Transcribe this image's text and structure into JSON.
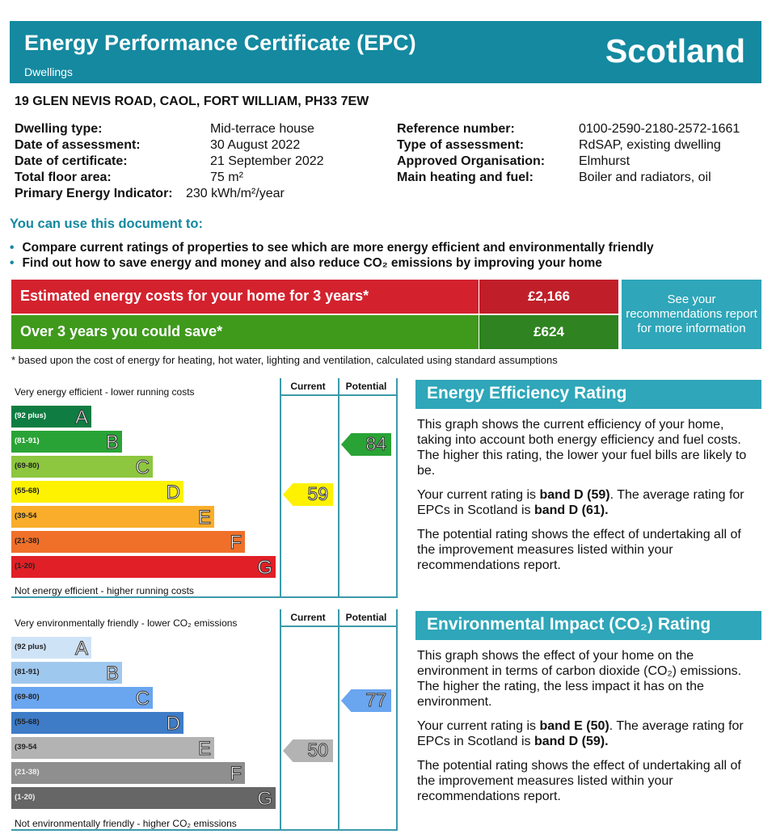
{
  "header": {
    "title": "Energy Performance Certificate (EPC)",
    "subtitle": "Dwellings",
    "region": "Scotland",
    "color": "#1489a0"
  },
  "address": "19 GLEN NEVIS ROAD, CAOL, FORT WILLIAM, PH33 7EW",
  "details_left": [
    {
      "label": "Dwelling type:",
      "value": "Mid-terrace house"
    },
    {
      "label": "Date of assessment:",
      "value": "30 August 2022"
    },
    {
      "label": "Date of certificate:",
      "value": "21 September 2022"
    },
    {
      "label": "Total floor area:",
      "value": "75 m²"
    },
    {
      "label": "Primary Energy Indicator:",
      "value": "230 kWh/m²/year"
    }
  ],
  "details_right": [
    {
      "label": "Reference number:",
      "value": "0100-2590-2180-2572-1661"
    },
    {
      "label": "Type of assessment:",
      "value": "RdSAP, existing dwelling"
    },
    {
      "label": "Approved Organisation:",
      "value": "Elmhurst"
    },
    {
      "label": "Main heating and fuel:",
      "value": "Boiler and radiators, oil"
    }
  ],
  "use_heading": "You can use this document to:",
  "bullets": [
    "Compare current ratings of properties to see which are more energy efficient and environmentally friendly",
    "Find out how to save energy and money and also reduce CO₂ emissions by improving your home"
  ],
  "costs": {
    "estimated_label": "Estimated energy costs for your home for 3 years*",
    "estimated_value": "£2,166",
    "save_label": "Over 3 years you could save*",
    "save_value": "£624",
    "recommendations_link": "See your recommendations report for more information",
    "footnote": "* based upon the cost of energy for heating, hot water, lighting and ventilation, calculated using standard assumptions"
  },
  "energy_chart": {
    "top_label": "Very energy efficient - lower running costs",
    "bottom_label": "Not energy efficient - higher running costs",
    "current_header": "Current",
    "potential_header": "Potential",
    "bands": [
      {
        "range": "(92 plus)",
        "letter": "A",
        "color": "#0f7d41",
        "text": "#fff"
      },
      {
        "range": "(81-91)",
        "letter": "B",
        "color": "#2aa336",
        "text": "#fff"
      },
      {
        "range": "(69-80)",
        "letter": "C",
        "color": "#8dc63f",
        "text": "#222"
      },
      {
        "range": "(55-68)",
        "letter": "D",
        "color": "#fef200",
        "text": "#222"
      },
      {
        "range": "(39-54",
        "letter": "E",
        "color": "#f9ad2b",
        "text": "#222"
      },
      {
        "range": "(21-38)",
        "letter": "F",
        "color": "#f0702a",
        "text": "#222"
      },
      {
        "range": "(1-20)",
        "letter": "G",
        "color": "#e11f26",
        "text": "#222"
      }
    ],
    "current": {
      "value": "59",
      "band": 3,
      "color": "#fef200"
    },
    "potential": {
      "value": "84",
      "band": 1,
      "color": "#2aa336"
    }
  },
  "co2_chart": {
    "top_label": "Very environmentally friendly - lower CO₂ emissions",
    "bottom_label": "Not environmentally friendly - higher CO₂ emissions",
    "current_header": "Current",
    "potential_header": "Potential",
    "bands": [
      {
        "range": "(92 plus)",
        "letter": "A",
        "color": "#cfe3f7",
        "text": "#222"
      },
      {
        "range": "(81-91)",
        "letter": "B",
        "color": "#9fc8ef",
        "text": "#222"
      },
      {
        "range": "(69-80)",
        "letter": "C",
        "color": "#6aa5f0",
        "text": "#222"
      },
      {
        "range": "(55-68)",
        "letter": "D",
        "color": "#3e7cc8",
        "text": "#222"
      },
      {
        "range": "(39-54",
        "letter": "E",
        "color": "#b3b3b3",
        "text": "#222"
      },
      {
        "range": "(21-38)",
        "letter": "F",
        "color": "#8f8f8f",
        "text": "#eee"
      },
      {
        "range": "(1-20)",
        "letter": "G",
        "color": "#666",
        "text": "#eee"
      }
    ],
    "current": {
      "value": "50",
      "band": 4,
      "color": "#b3b3b3"
    },
    "potential": {
      "value": "77",
      "band": 2,
      "color": "#6aa5f0"
    }
  },
  "energy_panel": {
    "heading": "Energy Efficiency Rating",
    "p1": "This graph shows the current efficiency of your home, taking into account both energy efficiency and fuel costs. The higher this rating, the lower your fuel bills are likely to be.",
    "p2_pre": "Your current rating is ",
    "p2_b1": "band D (59)",
    "p2_mid": ". The average rating for EPCs in Scotland is ",
    "p2_b2": "band D (61).",
    "p3": "The potential rating shows the effect of undertaking all of the improvement measures listed within your recommendations report."
  },
  "co2_panel": {
    "heading": "Environmental Impact (CO₂) Rating",
    "p1": "This graph shows the effect of your home on the environment in terms of carbon dioxide (CO₂) emissions. The higher the rating, the less impact it has on the environment.",
    "p2_pre": "Your current rating is ",
    "p2_b1": "band E (50)",
    "p2_mid": ". The average rating for EPCs in Scotland is ",
    "p2_b2": "band D (59).",
    "p3": "The potential rating shows the effect of undertaking all of the improvement measures listed within your recommendations report."
  }
}
